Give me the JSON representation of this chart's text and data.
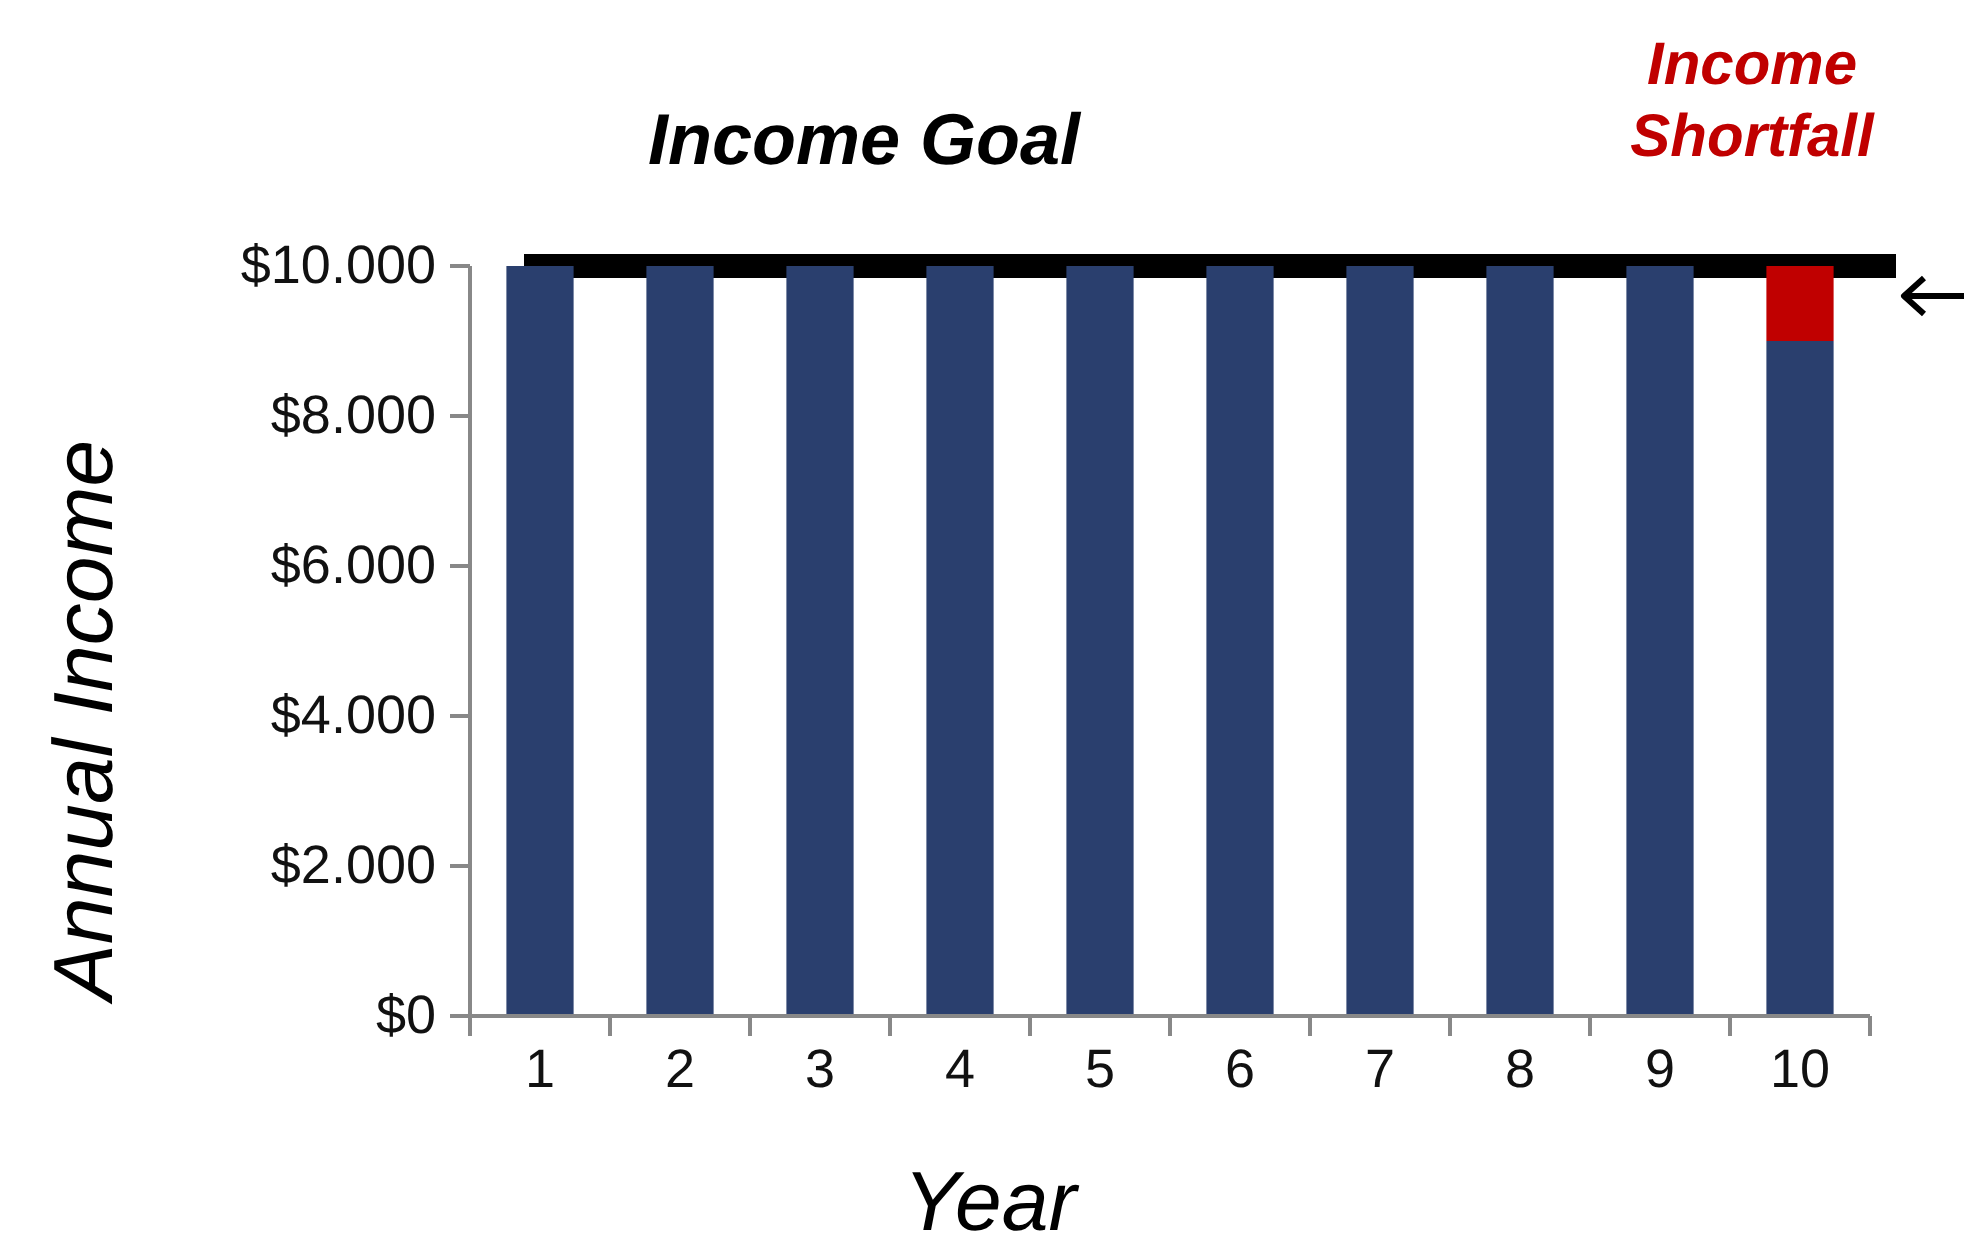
{
  "chart_data": {
    "type": "bar",
    "stacked": true,
    "xlabel": "Year",
    "ylabel": "Annual Income",
    "categories": [
      "1",
      "2",
      "3",
      "4",
      "5",
      "6",
      "7",
      "8",
      "9",
      "10"
    ],
    "series": [
      {
        "color": "#2a3f6e",
        "values": [
          10000,
          10000,
          10000,
          10000,
          10000,
          10000,
          10000,
          10000,
          10000,
          9000
        ]
      },
      {
        "color": "#c00000",
        "values": [
          null,
          null,
          null,
          null,
          null,
          null,
          null,
          null,
          null,
          1000
        ]
      }
    ],
    "ylim": [
      0,
      10000
    ],
    "yticks": [
      {
        "value": 0,
        "label": "$0"
      },
      {
        "value": 2000,
        "label": "$2.000"
      },
      {
        "value": 4000,
        "label": "$4.000"
      },
      {
        "value": 6000,
        "label": "$6.000"
      },
      {
        "value": 8000,
        "label": "$8.000"
      },
      {
        "value": 10000,
        "label": "$10.000"
      }
    ],
    "ref_lines": [
      {
        "axis": "y",
        "value": 10000,
        "label": "Income Goal",
        "color": "#000000"
      }
    ],
    "annotations": [
      "Income Shortfall"
    ],
    "grid": false
  }
}
